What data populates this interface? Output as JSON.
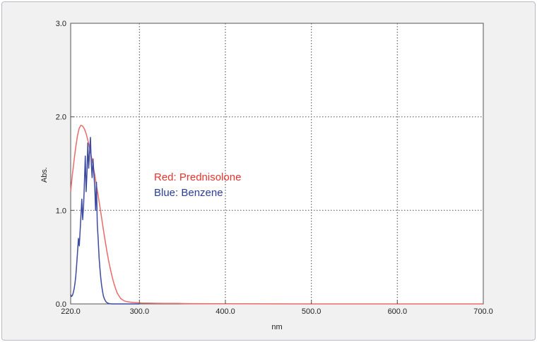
{
  "chart_data": {
    "type": "line",
    "xlabel": "nm",
    "ylabel": "Abs.",
    "xlim": [
      220,
      700
    ],
    "ylim": [
      0,
      3
    ],
    "x_ticks": [
      "220.0",
      "300.0",
      "400.0",
      "500.0",
      "600.0",
      "700.0"
    ],
    "y_ticks": [
      "0.0",
      "1.0",
      "2.0",
      "3.0"
    ],
    "grid": true,
    "annotations": [
      {
        "text": "Red: Prednisolone",
        "color": "#e8332f"
      },
      {
        "text": "Blue: Benzene",
        "color": "#2b3d99"
      }
    ],
    "series": [
      {
        "color": "#ea6a6a",
        "x": [
          220,
          222,
          224,
          226,
          228,
          230,
          232,
          234,
          236,
          238,
          240,
          242,
          244,
          246,
          248,
          250,
          252,
          254,
          256,
          258,
          260,
          262,
          264,
          266,
          268,
          270,
          272,
          274,
          276,
          278,
          280,
          282,
          284,
          286,
          288,
          290,
          294,
          298,
          302,
          310,
          320,
          330,
          345,
          360,
          400,
          500,
          600,
          700
        ],
        "y": [
          1.2,
          1.38,
          1.54,
          1.68,
          1.8,
          1.88,
          1.91,
          1.9,
          1.87,
          1.82,
          1.75,
          1.67,
          1.58,
          1.48,
          1.38,
          1.27,
          1.16,
          1.04,
          0.92,
          0.8,
          0.68,
          0.57,
          0.47,
          0.38,
          0.3,
          0.23,
          0.17,
          0.12,
          0.09,
          0.06,
          0.045,
          0.035,
          0.028,
          0.023,
          0.02,
          0.018,
          0.015,
          0.012,
          0.01,
          0.008,
          0.007,
          0.006,
          0.005,
          0.003,
          0.002,
          0.0,
          0.0,
          0.0
        ]
      },
      {
        "color": "#3c4aa0",
        "x": [
          220,
          221,
          222,
          223,
          224,
          225,
          226,
          227,
          228,
          229,
          230,
          231,
          232,
          233,
          234,
          235,
          236,
          237,
          238,
          239,
          240,
          241,
          242,
          243,
          244,
          245,
          246,
          247,
          248,
          249,
          250,
          251,
          252,
          253,
          254,
          255,
          256,
          257,
          258,
          259,
          260,
          261,
          262,
          263,
          264,
          266,
          268,
          270,
          272,
          275,
          280,
          290,
          300
        ],
        "y": [
          0.1,
          0.08,
          0.09,
          0.12,
          0.16,
          0.22,
          0.3,
          0.42,
          0.55,
          0.7,
          0.62,
          0.78,
          0.95,
          1.12,
          0.9,
          1.05,
          1.3,
          1.58,
          1.2,
          1.4,
          1.72,
          1.45,
          1.62,
          1.78,
          1.5,
          1.35,
          1.55,
          1.4,
          1.25,
          1.0,
          1.3,
          0.85,
          0.7,
          0.5,
          0.38,
          0.28,
          0.2,
          0.14,
          0.09,
          0.06,
          0.04,
          0.025,
          0.015,
          0.01,
          0.005,
          0.002,
          0.0,
          0.0,
          0.0,
          0.0,
          0.0,
          0.0,
          0.0
        ]
      }
    ]
  }
}
